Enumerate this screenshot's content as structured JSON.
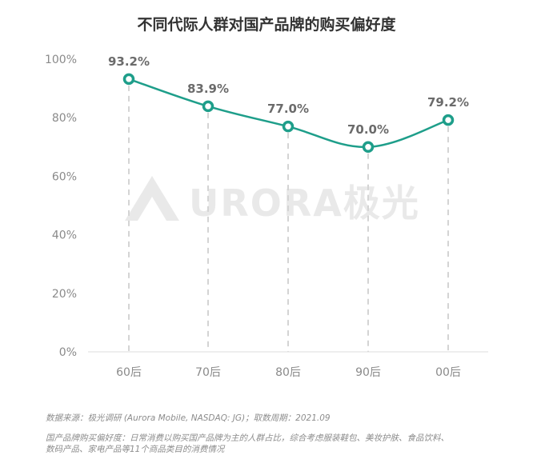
{
  "chart_data": {
    "type": "line",
    "title": "不同代际人群对国产品牌的购买偏好度",
    "categories": [
      "60后",
      "70后",
      "80后",
      "90后",
      "00后"
    ],
    "values": [
      93.2,
      83.9,
      77.0,
      70.0,
      79.2
    ],
    "value_labels": [
      "93.2%",
      "83.9%",
      "77.0%",
      "70.0%",
      "79.2%"
    ],
    "ylim": [
      0,
      100
    ],
    "yticks": [
      0,
      20,
      40,
      60,
      80,
      100
    ],
    "ytick_labels": [
      "0%",
      "20%",
      "40%",
      "60%",
      "80%",
      "100%"
    ],
    "line_color": "#1e9e8a",
    "grid": false,
    "vertical_dropline_color": "#d4d4d4"
  },
  "watermark": {
    "brand": "URORA极光"
  },
  "footnotes": [
    "数据来源：极光调研 (Aurora Mobile, NASDAQ: JG)；取数周期：2021.09",
    "国产品牌购买偏好度：日常消费以购买国产品牌为主的人群占比，综合考虑服装鞋包、美妆护肤、食品饮料、",
    "数码产品、家电产品等11个商品类目的消费情况"
  ]
}
